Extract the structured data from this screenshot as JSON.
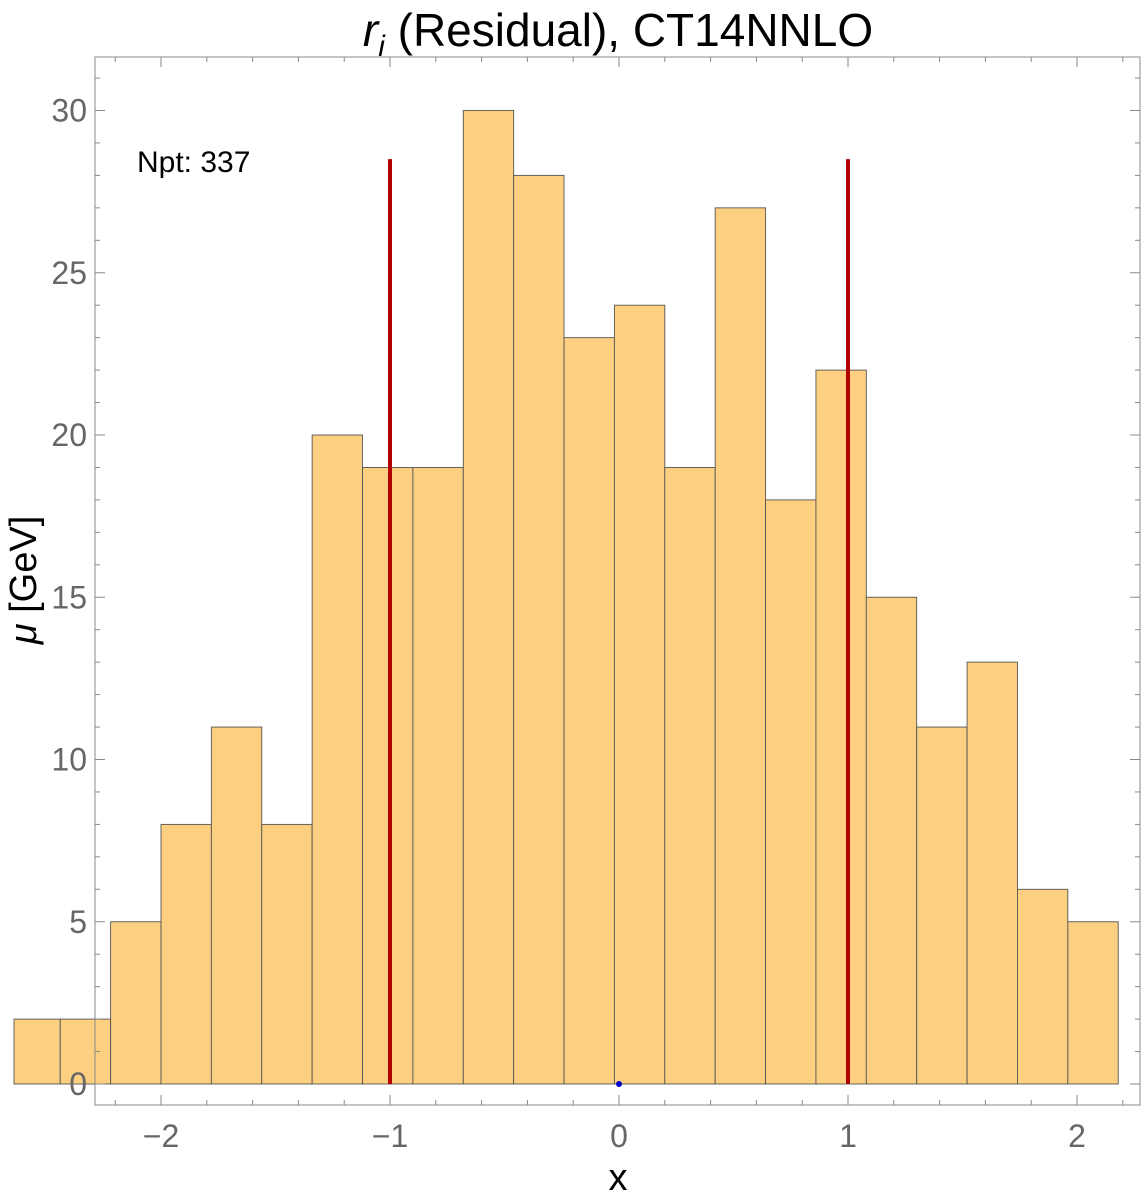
{
  "chart_data": {
    "type": "bar",
    "title_symbol": "r",
    "title_subscript": "i",
    "title_rest": " (Residual), CT14NNLO",
    "xlabel": "x",
    "ylabel_symbol": "μ",
    "ylabel_rest": " [GeV]",
    "xlim": [
      -2.3,
      2.2
    ],
    "ylim": [
      -0.6,
      31.6
    ],
    "x_ticks": [
      -2,
      -1,
      0,
      1,
      2
    ],
    "x_tick_labels": [
      "−2",
      "−1",
      "0",
      "1",
      "2"
    ],
    "y_ticks": [
      0,
      5,
      10,
      15,
      20,
      25,
      30
    ],
    "y_tick_labels": [
      "0",
      "5",
      "10",
      "15",
      "20",
      "25",
      "30"
    ],
    "bin_edges": [
      -2.66,
      -2.44,
      -2.22,
      -2.0,
      -1.78,
      -1.56,
      -1.34,
      -1.12,
      -0.9,
      -0.68,
      -0.46,
      -0.24,
      -0.02,
      0.2,
      0.42,
      0.64,
      0.86,
      1.08,
      1.3,
      1.52,
      1.74,
      1.96,
      2.18
    ],
    "values": [
      2,
      2,
      5,
      8,
      11,
      8,
      20,
      19,
      19,
      30,
      28,
      23,
      24,
      19,
      27,
      18,
      22,
      15,
      11,
      13,
      6,
      5
    ],
    "reference_lines": [
      {
        "x": -1,
        "y_top": 28.5,
        "color": "#b30000"
      },
      {
        "x": 1,
        "y_top": 28.5,
        "color": "#b30000"
      }
    ],
    "marker_point": {
      "x": 0,
      "y": 0,
      "color": "#0000cc"
    },
    "annotation": "Npt: 337",
    "bar_color": "#fdcf80",
    "bar_edge_color": "#555555",
    "grid": false
  }
}
